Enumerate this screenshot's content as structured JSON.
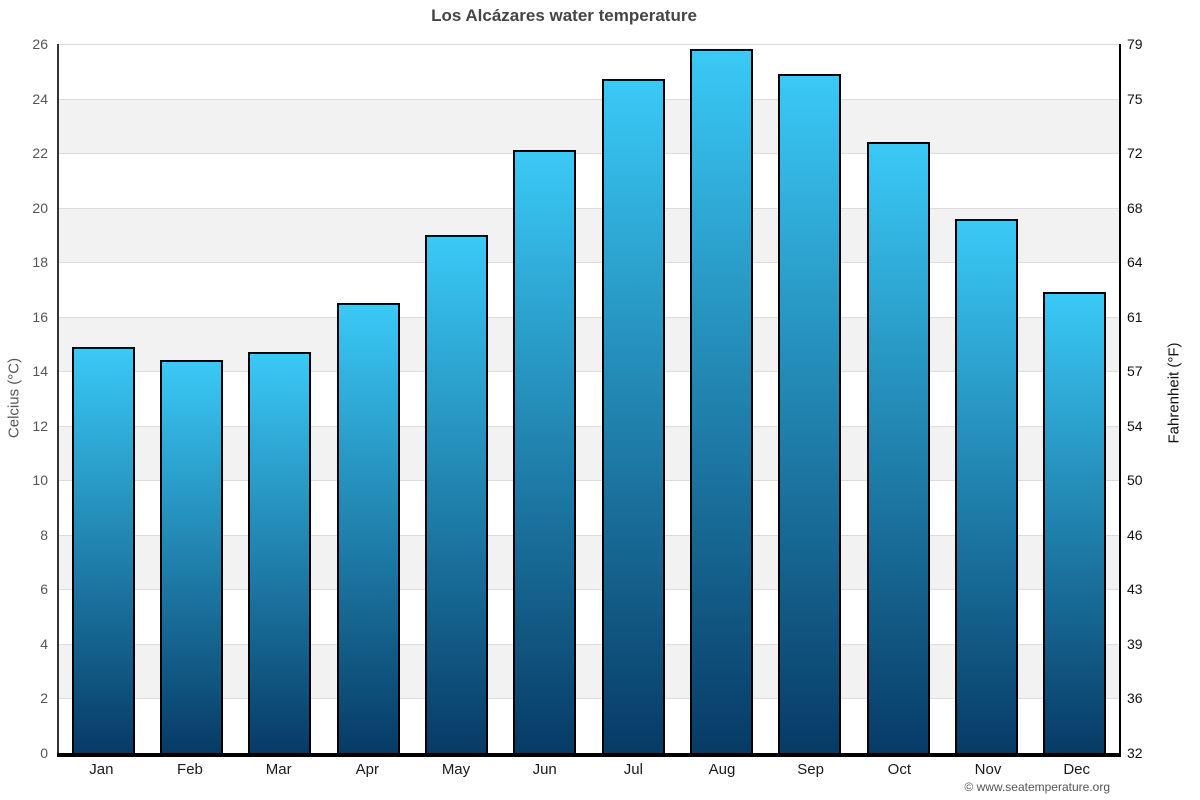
{
  "title": "Los Alcázares water temperature",
  "copyright": "© www.seatemperature.org",
  "axes": {
    "left_label": "Celcius (°C)",
    "right_label": "Fahrenheit (°F)"
  },
  "chart_data": {
    "type": "bar",
    "title": "Los Alcázares water temperature",
    "categories": [
      "Jan",
      "Feb",
      "Mar",
      "Apr",
      "May",
      "Jun",
      "Jul",
      "Aug",
      "Sep",
      "Oct",
      "Nov",
      "Dec"
    ],
    "series": [
      {
        "name": "Water temperature (°C)",
        "values": [
          14.9,
          14.4,
          14.7,
          16.5,
          19.0,
          22.1,
          24.7,
          25.8,
          24.9,
          22.4,
          19.6,
          16.9
        ]
      }
    ],
    "xlabel": "",
    "ylabel_left": "Celcius (°C)",
    "ylabel_right": "Fahrenheit (°F)",
    "ylim_left": [
      0,
      26
    ],
    "yticks_left": [
      26,
      24,
      22,
      20,
      18,
      16,
      14,
      12,
      10,
      8,
      6,
      4,
      2,
      0
    ],
    "yticks_right": [
      79,
      75,
      72,
      68,
      64,
      61,
      57,
      54,
      50,
      46,
      43,
      39,
      36,
      32
    ],
    "grid": "horizontal-bands-alternating",
    "legend": "none",
    "colors": {
      "bar_gradient_top": "#3AC9F6",
      "bar_gradient_bottom": "#073B66",
      "bar_border": "#000000",
      "band_gray": "#f2f2f2",
      "band_white": "#ffffff",
      "gridline": "#dcdcdc",
      "title_text": "#454545",
      "left_tick_text": "#555555",
      "right_tick_text": "#111111"
    }
  }
}
